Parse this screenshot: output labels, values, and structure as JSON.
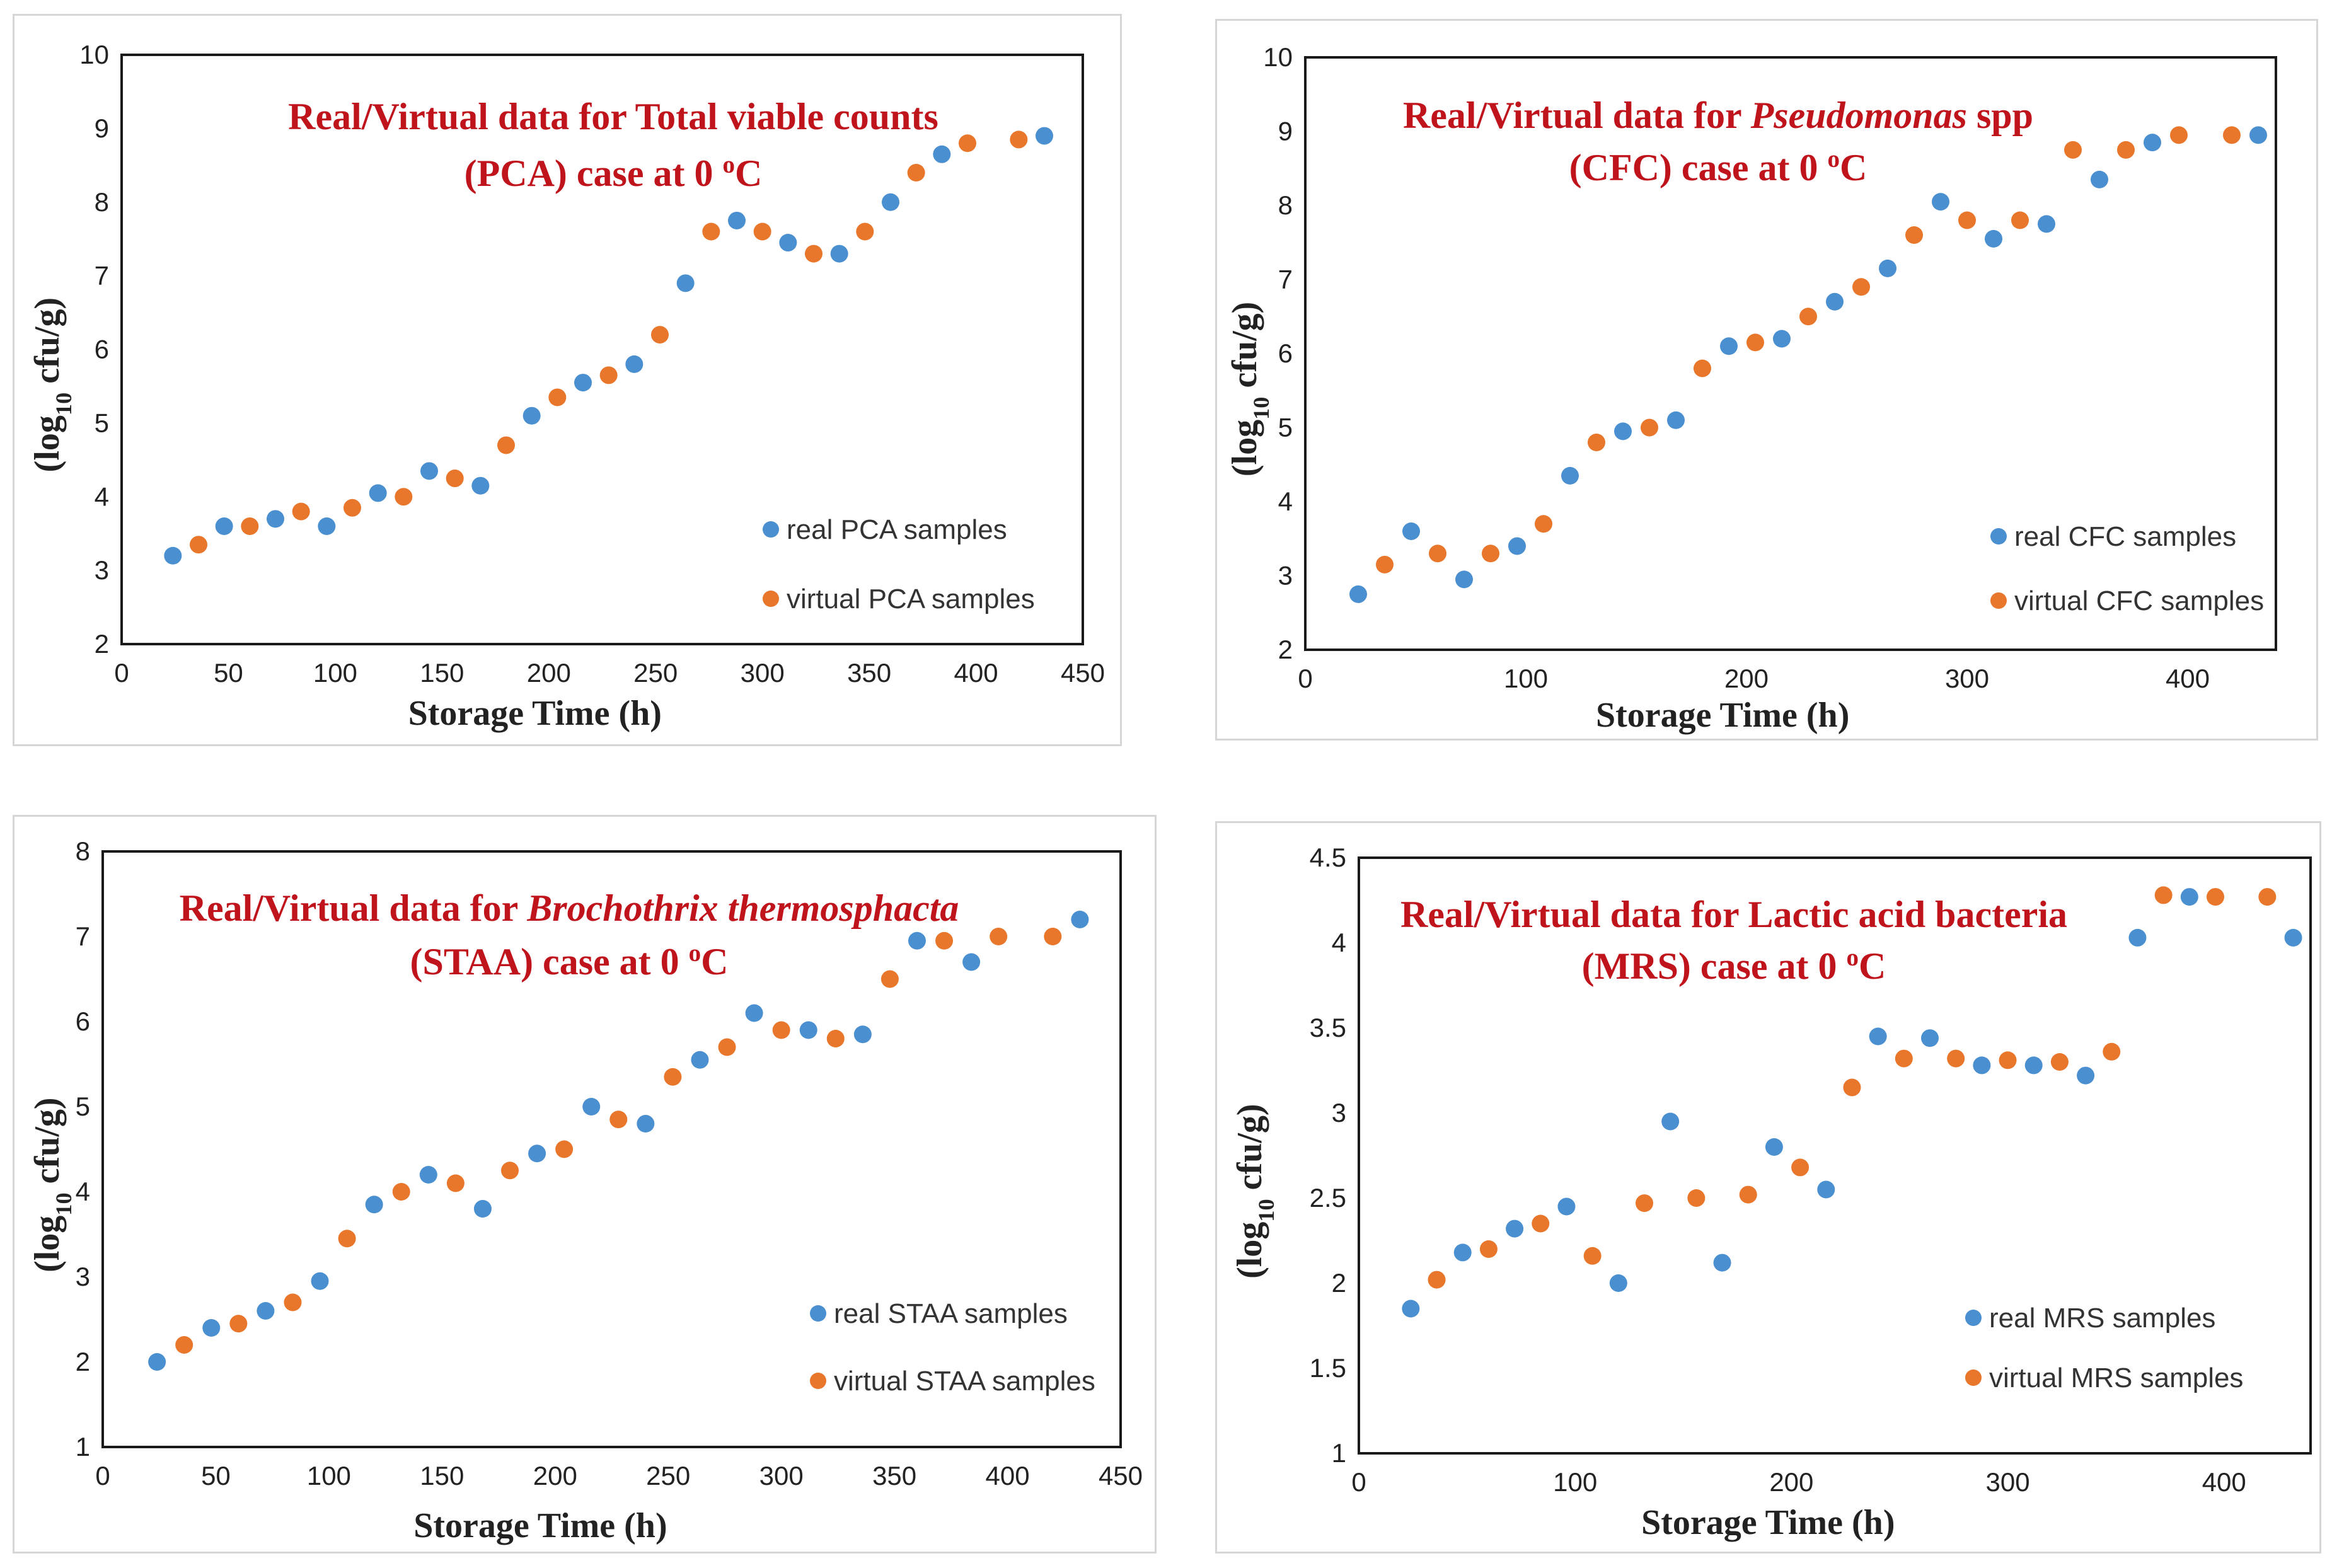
{
  "colors": {
    "real": "#4a8fcf",
    "virtual": "#e8762b",
    "title": "#c0141c"
  },
  "chart_data": [
    {
      "type": "scatter",
      "title_line1_parts": [
        {
          "text": "Real/Virtual  data for Total viable counts",
          "italic": false
        }
      ],
      "title_line2_parts": [
        {
          "text": "(PCA)  case at 0 ",
          "italic": false
        },
        {
          "text": "o",
          "sup": true
        },
        {
          "text": "C",
          "italic": false
        }
      ],
      "xlabel": "Storage Time (h)",
      "ylabel_parts": [
        {
          "text": "(log"
        },
        {
          "text": "10",
          "sub": true
        },
        {
          "text": " cfu/g)"
        }
      ],
      "xlim": [
        0,
        450
      ],
      "ylim": [
        2,
        10
      ],
      "xticks": [
        0,
        50,
        100,
        150,
        200,
        250,
        300,
        350,
        400,
        450
      ],
      "yticks": [
        2,
        3,
        4,
        5,
        6,
        7,
        8,
        9,
        10
      ],
      "legend": [
        "real PCA samples",
        "virtual PCA samples"
      ],
      "series": [
        {
          "name": "real PCA samples",
          "x": [
            24,
            48,
            72,
            96,
            120,
            144,
            168,
            192,
            216,
            240,
            264,
            288,
            312,
            336,
            360,
            384,
            432
          ],
          "y": [
            3.2,
            3.6,
            3.7,
            3.6,
            4.05,
            4.35,
            4.15,
            5.1,
            5.55,
            5.8,
            6.9,
            7.75,
            7.45,
            7.3,
            8.0,
            8.65,
            8.9
          ]
        },
        {
          "name": "virtual PCA samples",
          "x": [
            36,
            60,
            84,
            108,
            132,
            156,
            180,
            204,
            228,
            252,
            276,
            300,
            324,
            348,
            372,
            396,
            420
          ],
          "y": [
            3.35,
            3.6,
            3.8,
            3.85,
            4.0,
            4.25,
            4.7,
            5.35,
            5.65,
            6.2,
            7.6,
            7.6,
            7.3,
            7.6,
            8.4,
            8.8,
            8.85
          ]
        }
      ]
    },
    {
      "type": "scatter",
      "title_line1_parts": [
        {
          "text": "Real/Virtual  data for ",
          "italic": false
        },
        {
          "text": "Pseudomonas",
          "italic": true
        },
        {
          "text": " spp",
          "italic": false
        }
      ],
      "title_line2_parts": [
        {
          "text": "(CFC)  case at 0 ",
          "italic": false
        },
        {
          "text": "o",
          "sup": true
        },
        {
          "text": "C",
          "italic": false
        }
      ],
      "xlabel": "Storage Time (h)",
      "ylabel_parts": [
        {
          "text": "(log"
        },
        {
          "text": "10",
          "sub": true
        },
        {
          "text": " cfu/g)"
        }
      ],
      "xlim": [
        0,
        440
      ],
      "ylim": [
        2,
        10
      ],
      "xticks": [
        0,
        100,
        200,
        300,
        400
      ],
      "yticks": [
        2,
        3,
        4,
        5,
        6,
        7,
        8,
        9,
        10
      ],
      "legend": [
        "real CFC samples",
        "virtual CFC samples"
      ],
      "series": [
        {
          "name": "real CFC samples",
          "x": [
            24,
            48,
            72,
            96,
            120,
            144,
            168,
            192,
            216,
            240,
            264,
            288,
            312,
            336,
            360,
            384,
            432
          ],
          "y": [
            2.75,
            3.6,
            2.95,
            3.4,
            4.35,
            4.95,
            5.1,
            6.1,
            6.2,
            6.7,
            7.15,
            8.05,
            7.55,
            7.75,
            8.35,
            8.85,
            8.95
          ]
        },
        {
          "name": "virtual CFC samples",
          "x": [
            36,
            60,
            84,
            108,
            132,
            156,
            180,
            204,
            228,
            252,
            276,
            300,
            324,
            348,
            372,
            396,
            420
          ],
          "y": [
            3.15,
            3.3,
            3.3,
            3.7,
            4.8,
            5.0,
            5.8,
            6.15,
            6.5,
            6.9,
            7.6,
            7.8,
            7.8,
            8.75,
            8.75,
            8.95,
            8.95
          ]
        }
      ]
    },
    {
      "type": "scatter",
      "title_line1_parts": [
        {
          "text": "Real/Virtual  data for ",
          "italic": false
        },
        {
          "text": "Brochothrix thermosphacta",
          "italic": true
        }
      ],
      "title_line2_parts": [
        {
          "text": "(STAA)  case at 0 ",
          "italic": false
        },
        {
          "text": "o",
          "sup": true
        },
        {
          "text": "C",
          "italic": false
        }
      ],
      "xlabel": "Storage Time (h)",
      "ylabel_parts": [
        {
          "text": "(log"
        },
        {
          "text": "10",
          "sub": true
        },
        {
          "text": " cfu/g)"
        }
      ],
      "xlim": [
        0,
        450
      ],
      "ylim": [
        1,
        8
      ],
      "xticks": [
        0,
        50,
        100,
        150,
        200,
        250,
        300,
        350,
        400,
        450
      ],
      "yticks": [
        1,
        2,
        3,
        4,
        5,
        6,
        7,
        8
      ],
      "legend": [
        "real STAA samples",
        "virtual STAA samples"
      ],
      "series": [
        {
          "name": "real STAA samples",
          "x": [
            24,
            48,
            72,
            96,
            120,
            144,
            168,
            192,
            216,
            240,
            264,
            288,
            312,
            336,
            360,
            384,
            432
          ],
          "y": [
            2.0,
            2.4,
            2.6,
            2.95,
            3.85,
            4.2,
            3.8,
            4.45,
            5.0,
            4.8,
            5.55,
            6.1,
            5.9,
            5.85,
            6.95,
            6.7,
            7.2
          ]
        },
        {
          "name": "virtual STAA samples",
          "x": [
            36,
            60,
            84,
            108,
            132,
            156,
            180,
            204,
            228,
            252,
            276,
            300,
            324,
            348,
            372,
            396,
            420
          ],
          "y": [
            2.2,
            2.45,
            2.7,
            3.45,
            4.0,
            4.1,
            4.25,
            4.5,
            4.85,
            5.35,
            5.7,
            5.9,
            5.8,
            6.5,
            6.95,
            7.0,
            7.0
          ]
        }
      ]
    },
    {
      "type": "scatter",
      "title_line1_parts": [
        {
          "text": "Real/Virtual  data for Lactic acid bacteria",
          "italic": false
        }
      ],
      "title_line2_parts": [
        {
          "text": "(MRS) case at 0 ",
          "italic": false
        },
        {
          "text": "o",
          "sup": true
        },
        {
          "text": "C",
          "italic": false
        }
      ],
      "xlabel": "Storage Time (h)",
      "ylabel_parts": [
        {
          "text": "(log"
        },
        {
          "text": "10",
          "sub": true
        },
        {
          "text": " cfu/g)"
        }
      ],
      "xlim": [
        0,
        440
      ],
      "ylim": [
        1,
        4.5
      ],
      "xticks": [
        0,
        100,
        200,
        300,
        400
      ],
      "yticks": [
        1,
        1.5,
        2,
        2.5,
        3,
        3.5,
        4,
        4.5
      ],
      "legend": [
        "real MRS samples",
        "virtual MRS samples"
      ],
      "series": [
        {
          "name": "real MRS samples",
          "x": [
            24,
            48,
            72,
            96,
            120,
            144,
            168,
            192,
            216,
            240,
            264,
            288,
            312,
            336,
            360,
            384,
            432
          ],
          "y": [
            1.85,
            2.18,
            2.32,
            2.45,
            2.0,
            2.95,
            2.12,
            2.8,
            2.55,
            3.45,
            3.44,
            3.28,
            3.28,
            3.22,
            4.03,
            4.27,
            4.03
          ]
        },
        {
          "name": "virtual MRS samples",
          "x": [
            36,
            60,
            84,
            108,
            132,
            156,
            180,
            204,
            228,
            252,
            276,
            300,
            324,
            348,
            372,
            396,
            420
          ],
          "y": [
            2.02,
            2.2,
            2.35,
            2.16,
            2.47,
            2.5,
            2.52,
            2.68,
            3.15,
            3.32,
            3.32,
            3.31,
            3.3,
            3.36,
            4.28,
            4.27,
            4.27
          ]
        }
      ]
    }
  ]
}
